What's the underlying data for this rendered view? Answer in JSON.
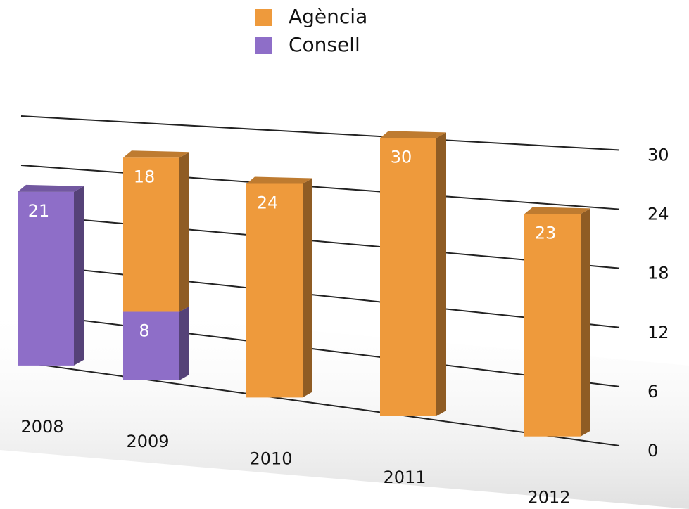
{
  "chart_data": {
    "type": "bar",
    "stacked": true,
    "categories": [
      "2008",
      "2009",
      "2010",
      "2011",
      "2012"
    ],
    "series": [
      {
        "name": "Agència",
        "color": "#ee9a3c",
        "values": [
          null,
          18,
          24,
          30,
          23
        ]
      },
      {
        "name": "Consell",
        "color": "#8e6ec8",
        "values": [
          21,
          8,
          null,
          null,
          null
        ]
      }
    ],
    "ylim": [
      0,
      30
    ],
    "yticks": [
      0,
      6,
      12,
      18,
      24,
      30
    ],
    "grid": true,
    "legend": "top"
  }
}
